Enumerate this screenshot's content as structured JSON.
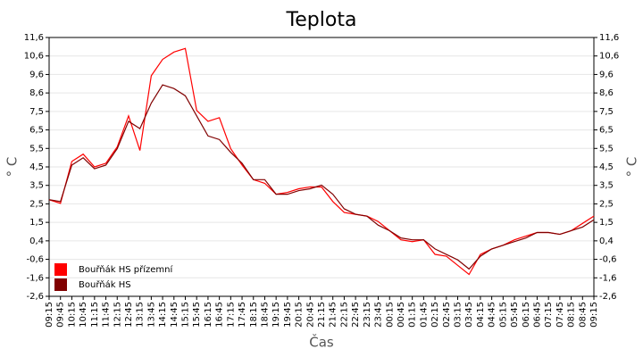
{
  "chart_data": {
    "type": "line",
    "title": "Teplota",
    "x_label": "Čas",
    "y_label": "° C",
    "categories": [
      "09:15",
      "09:45",
      "10:15",
      "10:45",
      "11:15",
      "11:45",
      "12:15",
      "12:45",
      "13:15",
      "13:45",
      "14:15",
      "14:45",
      "15:15",
      "15:45",
      "16:15",
      "16:45",
      "17:15",
      "17:45",
      "18:15",
      "18:45",
      "19:15",
      "19:45",
      "20:15",
      "20:45",
      "21:15",
      "21:45",
      "22:15",
      "22:45",
      "23:15",
      "23:45",
      "00:15",
      "00:45",
      "01:15",
      "01:45",
      "02:15",
      "02:45",
      "03:15",
      "03:45",
      "04:15",
      "04:45",
      "05:15",
      "05:45",
      "06:15",
      "06:45",
      "07:15",
      "07:45",
      "08:15",
      "08:45",
      "09:15"
    ],
    "series": [
      {
        "name": "Bouřňák HS přízemní",
        "color": "#ff0000",
        "values": [
          2.7,
          2.5,
          4.8,
          5.2,
          4.5,
          4.7,
          5.6,
          7.3,
          5.4,
          9.5,
          10.4,
          10.8,
          11.0,
          7.6,
          7.0,
          7.2,
          5.5,
          4.6,
          3.8,
          3.6,
          3.0,
          3.1,
          3.3,
          3.4,
          3.4,
          2.6,
          2.0,
          1.9,
          1.8,
          1.5,
          1.0,
          0.5,
          0.4,
          0.5,
          -0.3,
          -0.4,
          -0.9,
          -1.4,
          -0.3,
          0.0,
          0.2,
          0.5,
          0.7,
          0.9,
          0.9,
          0.8,
          1.0,
          1.4,
          1.8
        ]
      },
      {
        "name": "Bouřňák HS",
        "color": "#800000",
        "values": [
          2.7,
          2.6,
          4.6,
          5.0,
          4.4,
          4.6,
          5.5,
          7.0,
          6.6,
          8.0,
          9.0,
          8.8,
          8.4,
          7.3,
          6.2,
          6.0,
          5.3,
          4.7,
          3.8,
          3.8,
          3.0,
          3.0,
          3.2,
          3.3,
          3.5,
          3.0,
          2.2,
          1.9,
          1.8,
          1.3,
          1.0,
          0.6,
          0.5,
          0.5,
          0.0,
          -0.3,
          -0.6,
          -1.1,
          -0.4,
          0.0,
          0.2,
          0.4,
          0.6,
          0.9,
          0.9,
          0.8,
          1.0,
          1.2,
          1.6
        ]
      }
    ],
    "ylim": [
      -2.6,
      11.6
    ],
    "yticks": [
      {
        "value": -2.6,
        "label": "-2,6"
      },
      {
        "value": -1.586,
        "label": "-1,6"
      },
      {
        "value": -0.571,
        "label": "-0,6"
      },
      {
        "value": 0.443,
        "label": "0,4"
      },
      {
        "value": 1.457,
        "label": "1,5"
      },
      {
        "value": 2.471,
        "label": "2,5"
      },
      {
        "value": 3.486,
        "label": "3,5"
      },
      {
        "value": 4.5,
        "label": "4,5"
      },
      {
        "value": 5.514,
        "label": "5,5"
      },
      {
        "value": 6.529,
        "label": "6,5"
      },
      {
        "value": 7.543,
        "label": "7,5"
      },
      {
        "value": 8.557,
        "label": "8,6"
      },
      {
        "value": 9.571,
        "label": "9,6"
      },
      {
        "value": 10.586,
        "label": "10,6"
      },
      {
        "value": 11.6,
        "label": "11,6"
      }
    ],
    "grid": true
  }
}
